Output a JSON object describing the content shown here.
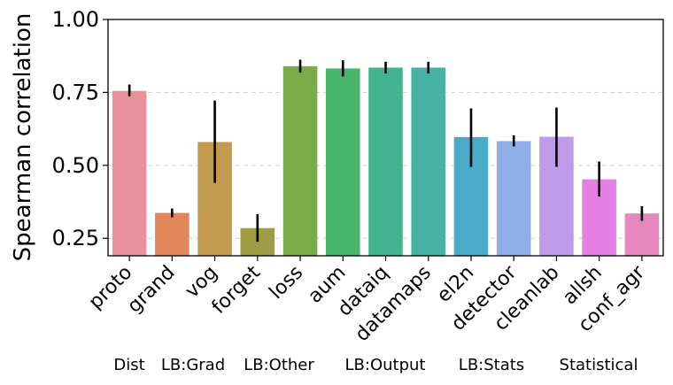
{
  "chart_data": {
    "type": "bar",
    "title": "",
    "xlabel": "",
    "ylabel": "Spearman correlation",
    "ylim": [
      0.19,
      1.0
    ],
    "yticks": [
      "0.25",
      "0.50",
      "0.75",
      "1.00"
    ],
    "ytick_values": [
      0.25,
      0.5,
      0.75,
      1.0
    ],
    "grid": "horizontal-dashed",
    "categories": [
      "proto",
      "grand",
      "vog",
      "forget",
      "loss",
      "aum",
      "dataiq",
      "datamaps",
      "el2n",
      "detector",
      "cleanlab",
      "allsh",
      "conf_agr"
    ],
    "values": [
      0.755,
      0.337,
      0.58,
      0.285,
      0.84,
      0.832,
      0.835,
      0.835,
      0.597,
      0.583,
      0.598,
      0.452,
      0.335
    ],
    "err_low": [
      0.737,
      0.322,
      0.44,
      0.238,
      0.818,
      0.805,
      0.815,
      0.815,
      0.495,
      0.565,
      0.495,
      0.393,
      0.31
    ],
    "err_high": [
      0.777,
      0.352,
      0.722,
      0.333,
      0.862,
      0.86,
      0.855,
      0.855,
      0.695,
      0.603,
      0.698,
      0.513,
      0.36
    ],
    "colors": [
      "#e8919b",
      "#e0875a",
      "#c39a4d",
      "#9e9d45",
      "#7aab48",
      "#48b56a",
      "#44b490",
      "#45b2a5",
      "#4aabc8",
      "#8faee8",
      "#c09bea",
      "#e47fe4",
      "#e687c0"
    ],
    "groups": [
      "Dist",
      "LB:Grad",
      "LB:Other",
      "LB:Output",
      "LB:Stats",
      "Statistical"
    ]
  }
}
